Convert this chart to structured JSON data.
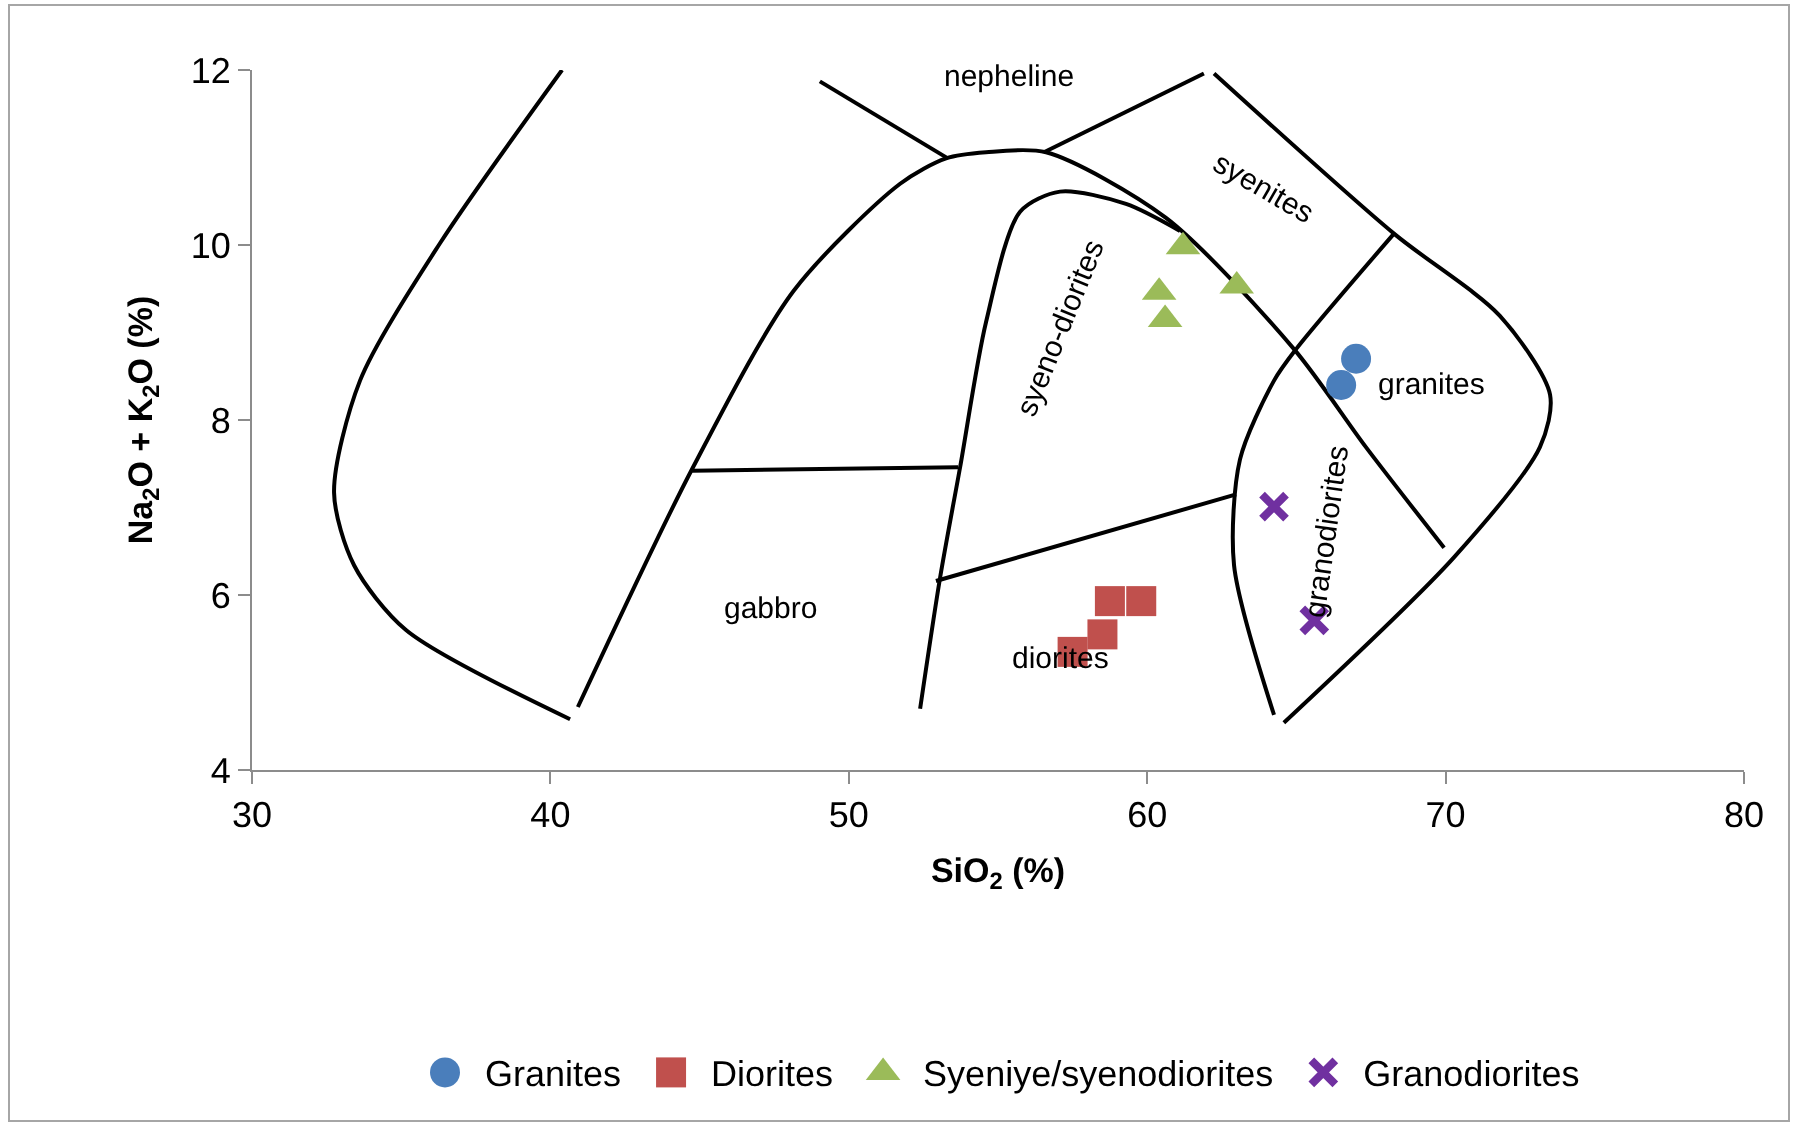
{
  "chart_data": {
    "type": "scatter",
    "xlabel": "SiO$_{2}$ (%)",
    "ylabel": "Na$_{2}$O + K$_{2}$O (%)",
    "xlim": [
      30,
      80
    ],
    "xticks": [
      30,
      40,
      50,
      60,
      70,
      80
    ],
    "ylim": [
      4,
      12
    ],
    "yticks": [
      4,
      6,
      8,
      10,
      12
    ],
    "grid": false,
    "legend": "bottom",
    "series": [
      {
        "type": "line",
        "color": "#000000",
        "marker": "none",
        "line_style": "solid",
        "x": [
          40.39,
          36.3,
          33.62,
          32.75,
          33.42,
          35.16,
          40.66
        ],
        "values": [
          12,
          10.02,
          8.45,
          7.17,
          6.34,
          5.6,
          4.58
        ]
      },
      {
        "type": "line",
        "color": "#000000",
        "marker": "none",
        "line_style": "solid",
        "x": [
          40.92,
          44.75,
          48.16,
          51.72,
          53.26,
          54.6,
          56.61,
          60.63,
          64.92,
          67.33,
          69.95
        ],
        "values": [
          4.72,
          7.44,
          9.48,
          10.7,
          10.99,
          11.06,
          11.06,
          10.31,
          8.81,
          7.69,
          6.54
        ]
      },
      {
        "type": "line",
        "color": "#000000",
        "marker": "none",
        "line_style": "solid",
        "x": [
          52.39,
          53.06,
          53.73,
          54.6,
          55.74,
          57.08,
          59.29,
          61.1
        ],
        "values": [
          4.7,
          6.2,
          7.46,
          9.12,
          10.38,
          10.61,
          10.47,
          10.16
        ]
      },
      {
        "type": "line",
        "color": "#000000",
        "marker": "none",
        "line_style": "solid",
        "x": [
          62.24,
          68.27,
          71.82,
          73.5,
          73.16,
          70.28,
          64.58
        ],
        "values": [
          11.96,
          10.13,
          9.19,
          8.29,
          7.69,
          6.43,
          4.54
        ]
      },
      {
        "type": "line",
        "color": "#000000",
        "marker": "none",
        "line_style": "solid",
        "x": [
          64.25,
          62.91,
          63.11,
          64.25,
          64.99,
          68.27
        ],
        "values": [
          4.63,
          6.34,
          7.55,
          8.45,
          8.81,
          10.13
        ]
      },
      {
        "type": "line",
        "color": "#000000",
        "marker": "none",
        "line_style": "solid",
        "x": [
          49.03,
          53.32
        ],
        "values": [
          11.87,
          10.99
        ]
      },
      {
        "type": "line",
        "color": "#000000",
        "marker": "none",
        "line_style": "solid",
        "x": [
          61.9,
          56.54
        ],
        "values": [
          11.96,
          11.06
        ]
      },
      {
        "type": "line",
        "color": "#000000",
        "marker": "none",
        "line_style": "solid",
        "x": [
          44.75,
          53.66
        ],
        "values": [
          7.42,
          7.46
        ]
      },
      {
        "type": "line",
        "color": "#000000",
        "marker": "none",
        "line_style": "solid",
        "x": [
          52.92,
          62.98
        ],
        "values": [
          6.16,
          7.15
        ]
      },
      {
        "name": "Granites",
        "color": "#4a7ebb",
        "marker": "circle",
        "x": [
          67.0,
          66.5
        ],
        "values": [
          8.7,
          8.4
        ]
      },
      {
        "name": "Diorites",
        "color": "#c0504d",
        "marker": "square",
        "x": [
          58.75,
          59.8,
          58.5,
          57.5
        ],
        "values": [
          5.93,
          5.93,
          5.55,
          5.35
        ]
      },
      {
        "name": "Syeniye/syenodiorites",
        "color": "#9bbb59",
        "marker": "triangle",
        "x": [
          61.2,
          60.4,
          60.6,
          63.0
        ],
        "values": [
          9.98,
          9.46,
          9.15,
          9.53
        ]
      },
      {
        "name": "Granodiorites",
        "color": "#7030a0",
        "marker": "cross",
        "x": [
          64.25,
          65.6
        ],
        "values": [
          7.01,
          5.71
        ]
      }
    ],
    "annotations": [
      "nepheline",
      "syenites",
      "syeno-diorites",
      "granites",
      "granodiorites",
      "gabbro",
      "diorites"
    ]
  }
}
